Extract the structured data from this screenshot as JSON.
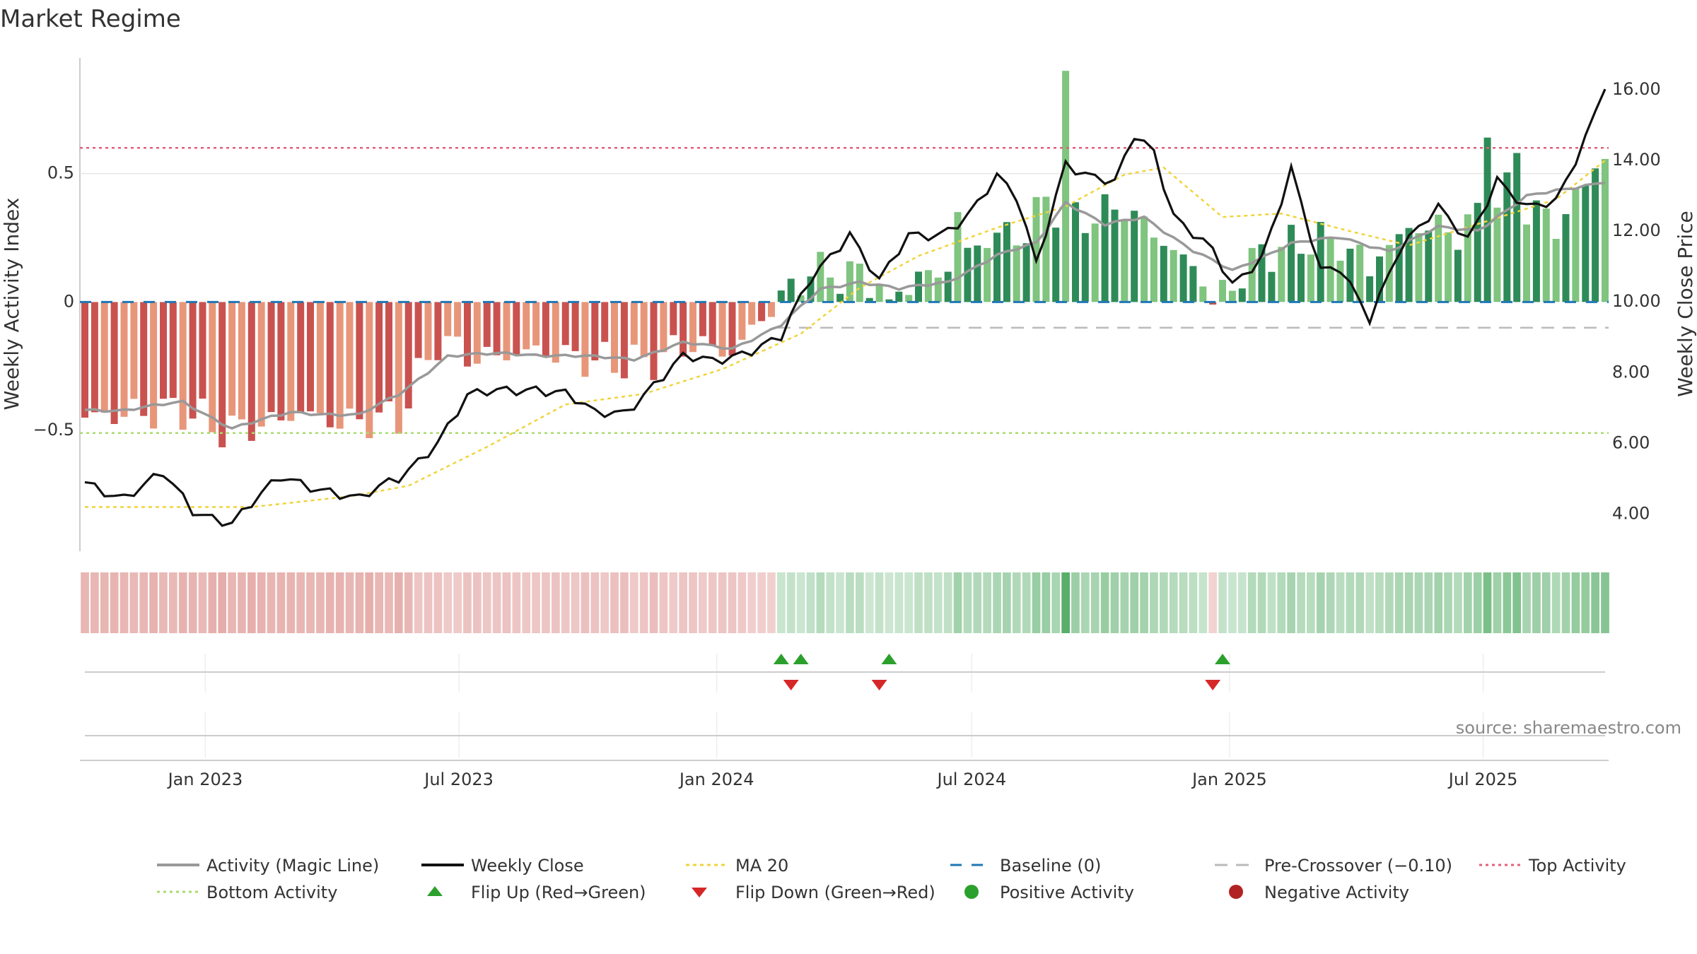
{
  "title": "Market Regime",
  "source": "source: sharemaestro.com",
  "axes": {
    "y_left_label": "Weekly Activity Index",
    "y_right_label": "Weekly Close Price",
    "y_left_ticks": [
      "0.5",
      "0",
      "−0.5"
    ],
    "y_left_tick_values": [
      0.5,
      0,
      -0.5
    ],
    "y_right_ticks": [
      "16.00",
      "14.00",
      "12.00",
      "10.00",
      "8.00",
      "6.00",
      "4.00"
    ],
    "y_right_tick_values": [
      16,
      14,
      12,
      10,
      8,
      6,
      4
    ],
    "x_ticks": [
      "Jan 2023",
      "Jul 2023",
      "Jan 2024",
      "Jul 2024",
      "Jan 2025",
      "Jul 2025"
    ],
    "y_left_range": [
      -0.97,
      0.95
    ],
    "y_right_range": [
      2.95,
      16.9
    ]
  },
  "legend": {
    "activity": "Activity (Magic Line)",
    "close": "Weekly Close",
    "ma20": "MA 20",
    "baseline": "Baseline (0)",
    "precross": "Pre-Crossover (−0.10)",
    "top": "Top Activity",
    "bottom": "Bottom Activity",
    "flipup": "Flip Up (Red→Green)",
    "flipdown": "Flip Down (Green→Red)",
    "pos": "Positive Activity",
    "neg": "Negative Activity"
  },
  "colors": {
    "pos_strong": "#2e8b57",
    "pos_light": "#7fc47f",
    "neg_strong": "#c9524f",
    "neg_light": "#e8967a",
    "close": "#111111",
    "activity_line": "#999999",
    "ma20": "#f0d43a",
    "baseline": "#1f77b4",
    "precross": "#bbbbbb",
    "top": "#e0607a",
    "bottom": "#a8dc6e",
    "flip_up": "#2ca02c",
    "flip_down": "#d62728"
  },
  "chart_data": {
    "type": "bar",
    "x_start": "2022-10-07",
    "x_end": "2025-09-26",
    "levels": {
      "baseline": 0,
      "pre_crossover": -0.1,
      "top_activity": 0.6,
      "bottom_activity": -0.51
    },
    "flip_up_dates": [
      "2024-02-16",
      "2024-03-01",
      "2024-05-03",
      "2024-12-27"
    ],
    "flip_down_dates": [
      "2024-02-23",
      "2024-04-26",
      "2024-12-20"
    ],
    "activity_anchors": [
      [
        "2022-10-07",
        -0.42
      ],
      [
        "2022-11-04",
        -0.42
      ],
      [
        "2022-12-16",
        -0.39
      ],
      [
        "2023-01-20",
        -0.49
      ],
      [
        "2023-03-03",
        -0.43
      ],
      [
        "2023-04-21",
        -0.44
      ],
      [
        "2023-05-19",
        -0.36
      ],
      [
        "2023-06-23",
        -0.21
      ],
      [
        "2023-08-04",
        -0.2
      ],
      [
        "2023-09-15",
        -0.21
      ],
      [
        "2023-11-03",
        -0.22
      ],
      [
        "2023-12-08",
        -0.16
      ],
      [
        "2024-01-12",
        -0.18
      ],
      [
        "2024-02-16",
        -0.09
      ],
      [
        "2024-03-15",
        0.05
      ],
      [
        "2024-04-12",
        0.08
      ],
      [
        "2024-05-10",
        0.05
      ],
      [
        "2024-06-14",
        0.08
      ],
      [
        "2024-07-19",
        0.18
      ],
      [
        "2024-08-16",
        0.23
      ],
      [
        "2024-09-06",
        0.39
      ],
      [
        "2024-10-04",
        0.3
      ],
      [
        "2024-11-01",
        0.33
      ],
      [
        "2024-12-06",
        0.2
      ],
      [
        "2025-01-03",
        0.12
      ],
      [
        "2025-02-14",
        0.23
      ],
      [
        "2025-03-21",
        0.25
      ],
      [
        "2025-04-25",
        0.2
      ],
      [
        "2025-05-30",
        0.29
      ],
      [
        "2025-06-27",
        0.28
      ],
      [
        "2025-08-01",
        0.41
      ],
      [
        "2025-09-26",
        0.47
      ]
    ],
    "bar_anchors": [
      [
        "2022-10-07",
        -0.45
      ],
      [
        "2022-11-18",
        -0.43
      ],
      [
        "2022-12-16",
        -0.42
      ],
      [
        "2023-01-13",
        -0.5
      ],
      [
        "2023-02-10",
        -0.48
      ],
      [
        "2023-03-10",
        -0.43
      ],
      [
        "2023-04-07",
        -0.47
      ],
      [
        "2023-05-19",
        -0.45
      ],
      [
        "2023-06-16",
        -0.15
      ],
      [
        "2023-07-14",
        -0.22
      ],
      [
        "2023-08-25",
        -0.19
      ],
      [
        "2023-10-06",
        -0.23
      ],
      [
        "2023-11-10",
        -0.24
      ],
      [
        "2023-12-15",
        -0.16
      ],
      [
        "2024-01-12",
        -0.2
      ],
      [
        "2024-02-09",
        -0.02
      ],
      [
        "2024-03-08",
        0.12
      ],
      [
        "2024-04-12",
        0.1
      ],
      [
        "2024-05-10",
        0.06
      ],
      [
        "2024-06-14",
        0.13
      ],
      [
        "2024-07-12",
        0.25
      ],
      [
        "2024-08-09",
        0.27
      ],
      [
        "2024-08-23",
        0.4
      ],
      [
        "2024-09-13",
        0.32
      ],
      [
        "2024-10-18",
        0.37
      ],
      [
        "2024-11-22",
        0.2
      ],
      [
        "2024-12-27",
        0.03
      ],
      [
        "2025-01-24",
        0.19
      ],
      [
        "2025-03-07",
        0.25
      ],
      [
        "2025-04-11",
        0.17
      ],
      [
        "2025-05-16",
        0.3
      ],
      [
        "2025-06-13",
        0.27
      ],
      [
        "2025-07-18",
        0.42
      ],
      [
        "2025-08-22",
        0.3
      ],
      [
        "2025-09-26",
        0.56
      ]
    ],
    "bar_spikes": [
      [
        "2024-09-06",
        0.9
      ],
      [
        "2025-07-04",
        0.64
      ],
      [
        "2025-07-25",
        0.58
      ],
      [
        "2024-06-21",
        0.35
      ],
      [
        "2025-04-11",
        0.1
      ],
      [
        "2024-05-03",
        0.01
      ],
      [
        "2024-12-20",
        -0.01
      ],
      [
        "2025-09-19",
        0.52
      ]
    ],
    "close_anchors": [
      [
        "2022-10-07",
        4.9
      ],
      [
        "2022-11-04",
        4.5
      ],
      [
        "2022-12-02",
        5.1
      ],
      [
        "2022-12-23",
        4.1
      ],
      [
        "2023-01-20",
        3.8
      ],
      [
        "2023-02-24",
        5.0
      ],
      [
        "2023-03-31",
        4.7
      ],
      [
        "2023-04-21",
        4.4
      ],
      [
        "2023-05-19",
        5.0
      ],
      [
        "2023-06-16",
        6.1
      ],
      [
        "2023-07-07",
        7.3
      ],
      [
        "2023-08-04",
        7.5
      ],
      [
        "2023-08-25",
        7.6
      ],
      [
        "2023-09-15",
        7.4
      ],
      [
        "2023-10-06",
        6.8
      ],
      [
        "2023-10-27",
        6.9
      ],
      [
        "2023-11-17",
        7.7
      ],
      [
        "2023-12-08",
        8.4
      ],
      [
        "2023-12-29",
        8.3
      ],
      [
        "2024-01-19",
        8.6
      ],
      [
        "2024-02-16",
        9.0
      ],
      [
        "2024-03-08",
        10.6
      ],
      [
        "2024-04-05",
        12.0
      ],
      [
        "2024-04-26",
        10.6
      ],
      [
        "2024-05-17",
        11.8
      ],
      [
        "2024-06-07",
        11.9
      ],
      [
        "2024-06-28",
        12.5
      ],
      [
        "2024-07-19",
        13.5
      ],
      [
        "2024-08-02",
        12.9
      ],
      [
        "2024-08-16",
        11.1
      ],
      [
        "2024-09-06",
        14.0
      ],
      [
        "2024-09-20",
        13.6
      ],
      [
        "2024-10-11",
        13.3
      ],
      [
        "2024-10-25",
        14.7
      ],
      [
        "2024-11-08",
        14.3
      ],
      [
        "2024-11-22",
        12.5
      ],
      [
        "2024-12-20",
        11.4
      ],
      [
        "2025-01-03",
        10.4
      ],
      [
        "2025-01-24",
        11.3
      ],
      [
        "2025-02-14",
        13.8
      ],
      [
        "2025-03-07",
        10.8
      ],
      [
        "2025-03-21",
        10.9
      ],
      [
        "2025-04-11",
        9.6
      ],
      [
        "2025-05-02",
        11.5
      ],
      [
        "2025-05-30",
        12.6
      ],
      [
        "2025-06-20",
        11.8
      ],
      [
        "2025-07-11",
        13.5
      ],
      [
        "2025-08-01",
        12.6
      ],
      [
        "2025-08-22",
        12.8
      ],
      [
        "2025-09-12",
        14.7
      ],
      [
        "2025-09-26",
        16.2
      ]
    ],
    "ma20_anchors": [
      [
        "2022-10-07",
        4.2
      ],
      [
        "2023-02-03",
        4.2
      ],
      [
        "2023-04-14",
        4.5
      ],
      [
        "2023-05-26",
        4.8
      ],
      [
        "2023-07-21",
        5.9
      ],
      [
        "2023-09-15",
        7.1
      ],
      [
        "2023-11-10",
        7.4
      ],
      [
        "2024-01-05",
        8.1
      ],
      [
        "2024-03-01",
        9.1
      ],
      [
        "2024-04-12",
        10.4
      ],
      [
        "2024-05-24",
        11.3
      ],
      [
        "2024-07-19",
        12.1
      ],
      [
        "2024-09-06",
        12.7
      ],
      [
        "2024-10-18",
        13.6
      ],
      [
        "2024-11-15",
        13.8
      ],
      [
        "2024-12-27",
        12.4
      ],
      [
        "2025-02-07",
        12.5
      ],
      [
        "2025-03-28",
        12.0
      ],
      [
        "2025-05-09",
        11.6
      ],
      [
        "2025-06-27",
        12.2
      ],
      [
        "2025-08-22",
        12.9
      ],
      [
        "2025-09-26",
        14.0
      ]
    ]
  }
}
